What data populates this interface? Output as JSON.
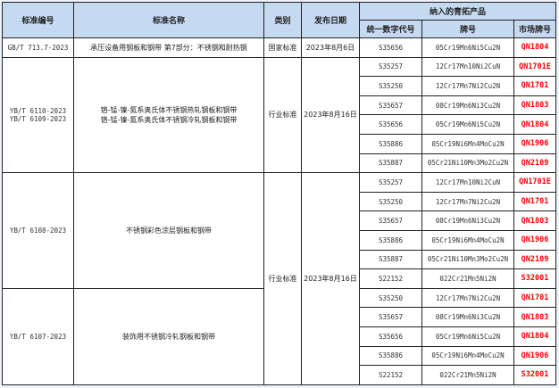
{
  "headers": {
    "std_no": "标准编号",
    "std_name": "标准名称",
    "category": "类别",
    "date": "发布日期",
    "group": "纳入的青拓产品",
    "code": "统一数字代号",
    "grade": "牌号",
    "market": "市场牌号"
  },
  "groups": [
    {
      "std_no": "GB/T 713.7-2023",
      "std_name": "承压设备用钢板和钢带 第7部分：不锈钢和耐热钢",
      "category": "国家标准",
      "date": "2023年8月6日",
      "products": [
        {
          "code": "S35656",
          "grade": "05Cr19Mn6Ni5Cu2N",
          "market": "QN1804"
        }
      ]
    },
    {
      "std_no": "YB/T 6110-2023",
      "std_no2": "YB/T 6109-2023",
      "std_name": "铬-锰-镍-氮系奥氏体不锈钢热轧钢板和钢带",
      "std_name2": "铬-锰-镍-氮系奥氏体不锈钢冷轧钢板和钢带",
      "category": "行业标准",
      "date": "2023年8月16日",
      "products": [
        {
          "code": "S35257",
          "grade": "12Cr17Mn10Ni2CuN",
          "market": "QN1701E"
        },
        {
          "code": "S35250",
          "grade": "12Cr17Mn7Ni2Cu2N",
          "market": "QN1701"
        },
        {
          "code": "S35657",
          "grade": "08Cr19Mn6Ni3Cu2N",
          "market": "QN1803"
        },
        {
          "code": "S35656",
          "grade": "05Cr19Mn6Ni5Cu2N",
          "market": "QN1804"
        },
        {
          "code": "S35886",
          "grade": "05Cr19Ni6Mn4MoCu2N",
          "market": "QN1906"
        },
        {
          "code": "S35887",
          "grade": "05Cr21Ni10Mn3Mo2Cu2N",
          "market": "QN2109"
        }
      ]
    },
    {
      "std_no": "YB/T 6108-2023",
      "std_name": "不锈钢彩色涂层钢板和钢带",
      "category": "行业标准",
      "date": "2023年8月16日",
      "products": [
        {
          "code": "S35257",
          "grade": "12Cr17Mn10Ni2CuN",
          "market": "QN1701E"
        },
        {
          "code": "S35250",
          "grade": "12Cr17Mn7Ni2Cu2N",
          "market": "QN1701"
        },
        {
          "code": "S35657",
          "grade": "08Cr19Mn6Ni3Cu2N",
          "market": "QN1803"
        },
        {
          "code": "S35886",
          "grade": "05Cr19Ni6Mn4MoCu2N",
          "market": "QN1906"
        },
        {
          "code": "S35887",
          "grade": "05Cr21Ni10Mn3Mo2Cu2N",
          "market": "QN2109"
        },
        {
          "code": "S22152",
          "grade": "022Cr21Mn5Ni2N",
          "market": "S32001"
        }
      ]
    },
    {
      "std_no": "YB/T 6107-2023",
      "std_name": "装饰用不锈钢冷轧钢板和钢带",
      "products": [
        {
          "code": "S35250",
          "grade": "12Cr17Mn7Ni2Cu2N",
          "market": "QN1701"
        },
        {
          "code": "S35657",
          "grade": "08Cr19Mn6Ni3Cu2N",
          "market": "QN1803"
        },
        {
          "code": "S35656",
          "grade": "05Cr19Mn6Ni5Cu2N",
          "market": "QN1804"
        },
        {
          "code": "S35886",
          "grade": "05Cr19Ni6Mn4MoCu2N",
          "market": "QN1906"
        },
        {
          "code": "S22152",
          "grade": "022Cr21Mn5Ni2N",
          "market": "S32001"
        }
      ]
    }
  ],
  "colors": {
    "header_bg": "#c5d9f1",
    "market_text": "#ff0000"
  }
}
